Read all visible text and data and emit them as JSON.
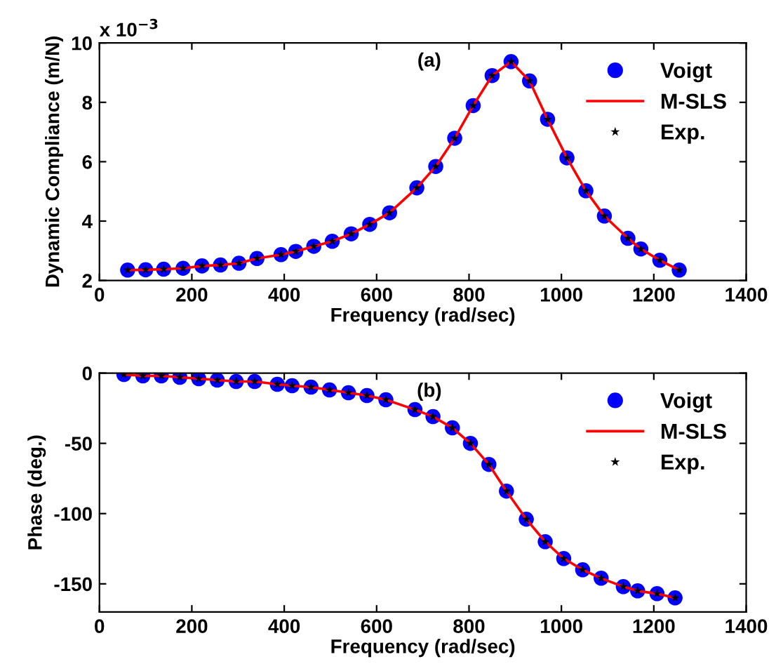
{
  "chart_data": [
    {
      "type": "scatter",
      "xlabel": "Frequency (rad/sec)",
      "ylabel": "Dynamic Compliance (m/N)",
      "annotations": [
        "x 10$^{−3}$",
        "(a)"
      ],
      "xlim": [
        0,
        1400
      ],
      "xticks": [
        0,
        200,
        400,
        600,
        800,
        1000,
        1200,
        1400
      ],
      "ylim": [
        2,
        10
      ],
      "yticks": [
        2,
        4,
        6,
        8,
        10
      ],
      "legend": "top right",
      "grid": false,
      "x": [
        61,
        100,
        139,
        181,
        222,
        262,
        302,
        341,
        393,
        425,
        464,
        504,
        545,
        585,
        628,
        687,
        728,
        769,
        809,
        850,
        891,
        931,
        970,
        1012,
        1053,
        1093,
        1144,
        1172,
        1213,
        1255
      ],
      "series": [
        {
          "name": "Voigt",
          "marker": "circle",
          "color": "#0000ff",
          "values": [
            2.35,
            2.36,
            2.38,
            2.41,
            2.49,
            2.52,
            2.58,
            2.74,
            2.87,
            2.98,
            3.15,
            3.32,
            3.57,
            3.89,
            4.28,
            5.12,
            5.84,
            6.79,
            7.89,
            8.9,
            9.37,
            8.72,
            7.43,
            6.13,
            5.02,
            4.17,
            3.42,
            3.06,
            2.68,
            2.35
          ]
        },
        {
          "name": "M-SLS",
          "type": "line",
          "marker": "none",
          "line_style": "solid",
          "color": "#ff0000",
          "values": [
            2.35,
            2.36,
            2.38,
            2.41,
            2.49,
            2.52,
            2.58,
            2.74,
            2.87,
            2.98,
            3.15,
            3.32,
            3.57,
            3.89,
            4.28,
            5.12,
            5.84,
            6.79,
            7.89,
            8.9,
            9.37,
            8.72,
            7.43,
            6.13,
            5.02,
            4.17,
            3.42,
            3.06,
            2.68,
            2.35
          ]
        },
        {
          "name": "Exp.",
          "marker": "star",
          "color": "#000000",
          "values": [
            2.35,
            2.36,
            2.38,
            2.41,
            2.49,
            2.52,
            2.58,
            2.74,
            2.87,
            2.98,
            3.15,
            3.32,
            3.57,
            3.89,
            4.28,
            5.12,
            5.84,
            6.79,
            7.89,
            8.9,
            9.37,
            8.72,
            7.43,
            6.13,
            5.02,
            4.17,
            3.42,
            3.06,
            2.68,
            2.35
          ]
        }
      ]
    },
    {
      "type": "scatter",
      "xlabel": "Frequency (rad/sec)",
      "ylabel": "Phase (deg.)",
      "annotations": [
        "(b)"
      ],
      "xlim": [
        0,
        1400
      ],
      "xticks": [
        0,
        200,
        400,
        600,
        800,
        1000,
        1200,
        1400
      ],
      "ylim": [
        -170,
        0
      ],
      "yticks": [
        -150,
        -100,
        -50,
        0
      ],
      "legend": "top right",
      "grid": false,
      "x": [
        53,
        94,
        134,
        174,
        215,
        255,
        296,
        336,
        385,
        417,
        458,
        498,
        539,
        579,
        620,
        683,
        722,
        764,
        803,
        843,
        881,
        924,
        965,
        1005,
        1046,
        1086,
        1134,
        1165,
        1207,
        1246
      ],
      "series": [
        {
          "name": "Voigt",
          "marker": "circle",
          "color": "#0000ff",
          "values": [
            -1,
            -2,
            -2,
            -3,
            -4,
            -5,
            -6,
            -6,
            -8,
            -9,
            -10,
            -12,
            -14,
            -16,
            -19,
            -26,
            -31,
            -39,
            -50,
            -65,
            -84,
            -104,
            -120,
            -132,
            -140,
            -146,
            -152,
            -155,
            -157,
            -160
          ]
        },
        {
          "name": "M-SLS",
          "type": "line",
          "marker": "none",
          "line_style": "solid",
          "color": "#ff0000",
          "values": [
            -1,
            -2,
            -2,
            -3,
            -4,
            -5,
            -6,
            -6,
            -8,
            -9,
            -10,
            -12,
            -14,
            -16,
            -19,
            -26,
            -31,
            -39,
            -50,
            -65,
            -84,
            -104,
            -120,
            -132,
            -140,
            -146,
            -152,
            -155,
            -157,
            -160
          ]
        },
        {
          "name": "Exp.",
          "marker": "star",
          "color": "#000000",
          "values": [
            -1,
            -2,
            -2,
            -3,
            -4,
            -5,
            -6,
            -6,
            -8,
            -9,
            -10,
            -12,
            -14,
            -16,
            -19,
            -26,
            -31,
            -39,
            -50,
            -65,
            -84,
            -104,
            -120,
            -132,
            -140,
            -146,
            -152,
            -155,
            -157,
            -160
          ]
        }
      ]
    }
  ]
}
